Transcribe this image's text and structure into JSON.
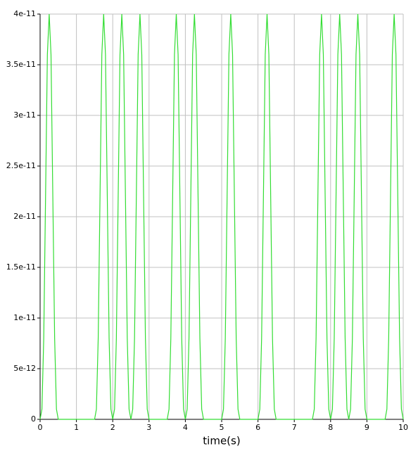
{
  "chart_data": {
    "type": "line",
    "x_label": "time(s)",
    "x": [
      0,
      0.05,
      0.1,
      0.15,
      0.2,
      0.25,
      0.3,
      0.35,
      0.4,
      0.45,
      0.5,
      1.5,
      1.55,
      1.6,
      1.65,
      1.7,
      1.75,
      1.8,
      1.85,
      1.9,
      1.95,
      2,
      2.05,
      2.1,
      2.15,
      2.2,
      2.25,
      2.3,
      2.35,
      2.4,
      2.45,
      2.5,
      2.55,
      2.6,
      2.65,
      2.7,
      2.75,
      2.8,
      2.85,
      2.9,
      2.95,
      3,
      3.5,
      3.55,
      3.6,
      3.65,
      3.7,
      3.75,
      3.8,
      3.85,
      3.9,
      3.95,
      4,
      4.05,
      4.1,
      4.15,
      4.2,
      4.25,
      4.3,
      4.35,
      4.4,
      4.45,
      4.5,
      5,
      5.05,
      5.1,
      5.15,
      5.2,
      5.25,
      5.3,
      5.35,
      5.4,
      5.45,
      5.5,
      6,
      6.05,
      6.1,
      6.15,
      6.2,
      6.25,
      6.3,
      6.35,
      6.4,
      6.45,
      6.5,
      7.5,
      7.55,
      7.6,
      7.65,
      7.7,
      7.75,
      7.8,
      7.85,
      7.9,
      7.95,
      8,
      8.05,
      8.1,
      8.15,
      8.2,
      8.25,
      8.3,
      8.35,
      8.4,
      8.45,
      8.5,
      8.55,
      8.6,
      8.65,
      8.7,
      8.75,
      8.8,
      8.85,
      8.9,
      8.95,
      9,
      9.5,
      9.55,
      9.6,
      9.65,
      9.7,
      9.75,
      9.8,
      9.85,
      9.9,
      9.95,
      10
    ],
    "series": [
      {
        "color": "#33dd33",
        "values": [
          0,
          1e-12,
          8e-12,
          2.2e-11,
          3.6e-11,
          4e-11,
          3.6e-11,
          2.2e-11,
          8e-12,
          1e-12,
          0,
          0,
          1e-12,
          8e-12,
          2.2e-11,
          3.6e-11,
          4e-11,
          3.6e-11,
          2.2e-11,
          8e-12,
          1e-12,
          0,
          1e-12,
          8e-12,
          2.2e-11,
          3.6e-11,
          4e-11,
          3.6e-11,
          2.2e-11,
          8e-12,
          1e-12,
          0,
          1e-12,
          8e-12,
          2.2e-11,
          3.6e-11,
          4e-11,
          3.6e-11,
          2.2e-11,
          8e-12,
          1e-12,
          0,
          0,
          1e-12,
          8e-12,
          2.2e-11,
          3.6e-11,
          4e-11,
          3.6e-11,
          2.2e-11,
          8e-12,
          1e-12,
          0,
          1e-12,
          8e-12,
          2.2e-11,
          3.6e-11,
          4e-11,
          3.6e-11,
          2.2e-11,
          8e-12,
          1e-12,
          0,
          0,
          1e-12,
          8e-12,
          2.2e-11,
          3.6e-11,
          4e-11,
          3.6e-11,
          2.2e-11,
          8e-12,
          1e-12,
          0,
          0,
          1e-12,
          8e-12,
          2.2e-11,
          3.6e-11,
          4e-11,
          3.6e-11,
          2.2e-11,
          8e-12,
          1e-12,
          0,
          0,
          1e-12,
          8e-12,
          2.2e-11,
          3.6e-11,
          4e-11,
          3.6e-11,
          2.2e-11,
          8e-12,
          1e-12,
          0,
          1e-12,
          8e-12,
          2.2e-11,
          3.6e-11,
          4e-11,
          3.6e-11,
          2.2e-11,
          8e-12,
          1e-12,
          0,
          1e-12,
          8e-12,
          2.2e-11,
          3.6e-11,
          4e-11,
          3.6e-11,
          2.2e-11,
          8e-12,
          1e-12,
          0,
          0,
          1e-12,
          8e-12,
          2.2e-11,
          3.6e-11,
          4e-11,
          3.6e-11,
          2.2e-11,
          8e-12,
          1e-12,
          0
        ]
      }
    ],
    "xlim": [
      0,
      10
    ],
    "xticks": [
      0,
      1,
      2,
      3,
      4,
      5,
      6,
      7,
      8,
      9,
      10
    ],
    "ylim": [
      0,
      4e-11
    ],
    "yticks": [
      0,
      5e-12,
      1e-11,
      1.5e-11,
      2e-11,
      2.5e-11,
      3e-11,
      3.5e-11,
      4e-11
    ],
    "grid": true
  }
}
